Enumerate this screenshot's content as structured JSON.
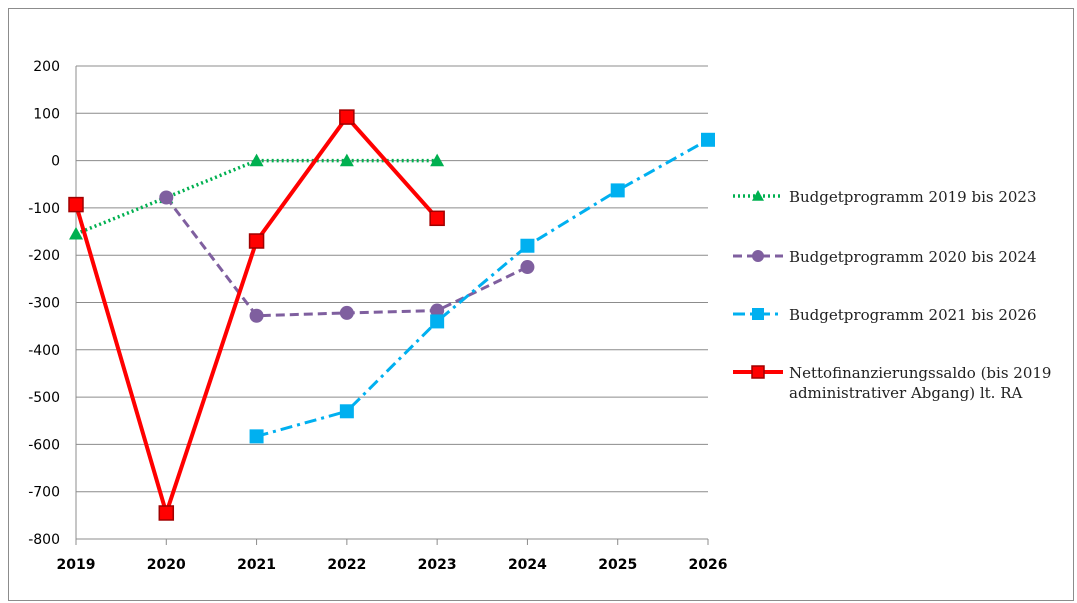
{
  "chart_data": {
    "type": "line",
    "title": "",
    "xlabel": "",
    "ylabel": "",
    "x": [
      "2019",
      "2020",
      "2021",
      "2022",
      "2023",
      "2024",
      "2025",
      "2026"
    ],
    "ylim": [
      -800,
      200
    ],
    "yticks": [
      200,
      100,
      0,
      -100,
      -200,
      -300,
      -400,
      -500,
      -600,
      -700,
      -800
    ],
    "grid": "horizontal",
    "legend_position": "right",
    "series": [
      {
        "name": "Budgetprogramm 2019 bis 2023",
        "color": "#00b050",
        "dash": "dotted",
        "marker": "triangle",
        "values": [
          -155,
          -78,
          0,
          0,
          0,
          null,
          null,
          null
        ]
      },
      {
        "name": "Budgetprogramm 2020 bis 2024",
        "color": "#7f5f9f",
        "dash": "dashed",
        "marker": "circle",
        "values": [
          null,
          -78,
          -328,
          -322,
          -317,
          -225,
          null,
          null
        ]
      },
      {
        "name": "Budgetprogramm 2021 bis 2026",
        "color": "#00b0f0",
        "dash": "dash-dot",
        "marker": "square",
        "values": [
          null,
          null,
          -583,
          -530,
          -340,
          -180,
          -63,
          44
        ]
      },
      {
        "name": "Nettofinanzierungssaldo (bis 2019 administrativer Abgang) lt. RA",
        "legend_lines": [
          "Nettofinanzierungssaldo (bis 2019",
          "administrativer Abgang) lt. RA"
        ],
        "color": "#ff0000",
        "dash": "solid",
        "marker": "square",
        "values": [
          -93,
          -745,
          -170,
          92,
          -122,
          null,
          null,
          null
        ]
      }
    ]
  }
}
